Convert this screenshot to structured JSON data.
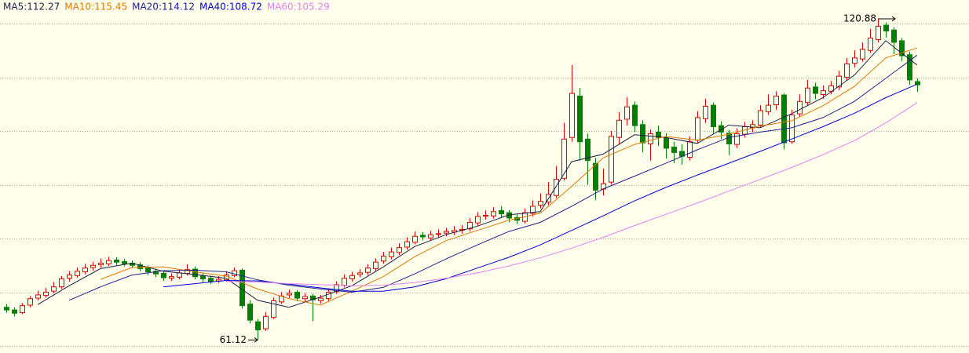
{
  "chart_data": {
    "type": "candlestick",
    "up_color": "#e00000",
    "down_color": "#008000",
    "background": "#ffffec",
    "grid": true,
    "ylim": [
      58.69,
      124.38
    ],
    "yticks": [
      60,
      70,
      80,
      90,
      100,
      110,
      120
    ],
    "open": [
      67.2,
      66.7,
      66.2,
      67.6,
      68.9,
      69.4,
      70.2,
      71.0,
      72.6,
      73.1,
      73.8,
      74.6,
      75.1,
      75.3,
      76.0,
      75.7,
      75.4,
      75.1,
      74.5,
      73.9,
      73.5,
      72.6,
      72.8,
      73.5,
      74.3,
      73.0,
      72.6,
      72.1,
      72.3,
      73.1,
      74.1,
      67.8,
      64.5,
      63.2,
      65.3,
      68.2,
      69.5,
      70.0,
      68.8,
      69.3,
      68.4,
      68.8,
      70.1,
      71.3,
      72.5,
      73.3,
      73.7,
      74.4,
      75.8,
      76.6,
      77.4,
      78.4,
      79.3,
      80.6,
      80.1,
      80.8,
      81.0,
      81.2,
      81.6,
      81.8,
      82.9,
      84.2,
      84.2,
      85.2,
      84.8,
      83.9,
      83.2,
      84.7,
      86.2,
      86.8,
      88.0,
      91.2,
      98.8,
      106.5,
      98.5,
      94.0,
      89.2,
      90.5,
      98.8,
      102.2,
      104.8,
      101.2,
      97.6,
      99.8,
      98.7,
      97.0,
      96.2,
      95.1,
      98.3,
      102.3,
      104.8,
      101.0,
      99.6,
      97.5,
      99.4,
      100.6,
      101.1,
      103.6,
      104.9,
      106.7,
      98.0,
      103.2,
      105.3,
      108.2,
      106.8,
      107.4,
      108.2,
      110.0,
      112.6,
      113.4,
      115.0,
      117.0,
      119.7,
      118.8,
      116.8,
      114.2,
      109.2
    ],
    "high": [
      67.8,
      67.2,
      68.0,
      69.3,
      70.3,
      70.8,
      71.9,
      73.0,
      73.9,
      74.6,
      75.3,
      75.7,
      76.3,
      76.6,
      76.5,
      76.2,
      75.9,
      75.6,
      75.0,
      74.4,
      74.0,
      73.5,
      74.3,
      75.2,
      74.8,
      73.6,
      73.1,
      73.0,
      73.9,
      74.6,
      74.4,
      68.5,
      65.0,
      66.3,
      69.0,
      70.0,
      70.5,
      70.4,
      69.8,
      69.7,
      69.5,
      70.6,
      72.0,
      73.3,
      73.8,
      74.3,
      75.2,
      76.3,
      77.5,
      78.3,
      79.1,
      80.2,
      81.3,
      81.2,
      81.4,
      81.7,
      82.0,
      82.3,
      82.5,
      83.8,
      84.9,
      85.2,
      85.8,
      86.0,
      85.3,
      84.5,
      85.6,
      87.1,
      88.4,
      90.5,
      93.5,
      101.5,
      112.3,
      108.0,
      99.5,
      95.0,
      93.0,
      100.0,
      103.5,
      106.3,
      105.5,
      102.0,
      100.3,
      101.0,
      99.6,
      98.0,
      97.5,
      99.0,
      103.7,
      106.0,
      105.3,
      101.8,
      100.2,
      100.5,
      101.7,
      102.0,
      104.8,
      106.8,
      107.4,
      107.0,
      104.0,
      106.8,
      109.5,
      109.0,
      108.5,
      109.3,
      111.2,
      113.6,
      115.0,
      116.4,
      119.0,
      120.88,
      120.2,
      119.3,
      117.3,
      114.8,
      109.8
    ],
    "low": [
      66.2,
      65.5,
      65.9,
      67.2,
      68.5,
      69.0,
      69.8,
      70.6,
      72.0,
      72.7,
      73.3,
      74.0,
      74.6,
      74.9,
      75.0,
      74.8,
      74.5,
      73.9,
      73.2,
      72.8,
      72.1,
      72.1,
      72.4,
      73.1,
      72.4,
      71.9,
      71.5,
      71.7,
      71.9,
      72.8,
      67.0,
      64.2,
      61.12,
      62.8,
      65.0,
      67.8,
      68.9,
      68.3,
      68.2,
      64.6,
      67.9,
      68.4,
      69.7,
      70.9,
      72.0,
      72.8,
      73.2,
      74.0,
      75.3,
      76.1,
      76.9,
      77.9,
      78.9,
      79.7,
      79.6,
      80.2,
      80.4,
      80.6,
      80.9,
      81.3,
      82.4,
      83.5,
      83.7,
      83.9,
      83.0,
      82.7,
      82.8,
      84.1,
      85.6,
      86.2,
      87.5,
      90.8,
      98.0,
      94.5,
      90.0,
      87.2,
      88.0,
      90.0,
      97.5,
      101.0,
      99.8,
      96.0,
      94.5,
      97.2,
      94.9,
      94.0,
      93.7,
      94.5,
      97.8,
      101.5,
      99.5,
      98.5,
      95.5,
      96.8,
      98.8,
      99.8,
      100.6,
      103.0,
      103.9,
      96.6,
      97.6,
      102.7,
      104.8,
      105.9,
      106.0,
      106.8,
      107.6,
      109.5,
      111.8,
      112.9,
      114.5,
      116.5,
      117.4,
      114.3,
      113.0,
      108.6,
      107.3
    ],
    "close": [
      66.7,
      66.1,
      67.5,
      68.8,
      69.5,
      70.0,
      71.0,
      72.5,
      73.2,
      73.9,
      74.5,
      75.0,
      75.4,
      75.9,
      75.6,
      75.3,
      75.0,
      74.4,
      73.8,
      73.4,
      72.7,
      72.9,
      73.6,
      74.2,
      72.9,
      72.5,
      72.0,
      72.4,
      73.2,
      74.0,
      67.5,
      64.8,
      63.0,
      65.5,
      68.4,
      69.3,
      69.8,
      68.9,
      69.2,
      68.6,
      68.9,
      70.0,
      71.4,
      72.6,
      73.1,
      73.6,
      74.5,
      75.6,
      76.7,
      77.5,
      78.3,
      79.4,
      80.4,
      80.3,
      80.7,
      80.9,
      81.3,
      81.5,
      81.7,
      83.0,
      84.1,
      84.3,
      85.0,
      84.6,
      83.8,
      83.4,
      84.8,
      86.0,
      86.9,
      88.2,
      91.0,
      98.5,
      107.0,
      98.0,
      94.5,
      89.0,
      90.2,
      99.0,
      102.0,
      104.5,
      101.0,
      97.8,
      99.5,
      98.8,
      96.8,
      96.0,
      95.3,
      98.0,
      102.5,
      104.6,
      100.8,
      99.8,
      97.6,
      99.5,
      100.8,
      101.2,
      103.8,
      104.8,
      106.5,
      97.8,
      103.0,
      105.5,
      108.0,
      107.0,
      107.5,
      108.4,
      110.2,
      112.5,
      113.6,
      115.2,
      117.3,
      119.5,
      118.6,
      116.5,
      114.0,
      109.5,
      108.6
    ],
    "max_label": "120.88",
    "min_label": "61.12",
    "series": [
      {
        "name": "MA5:112.27",
        "color": "#1c1c48",
        "x": [
          4,
          8,
          12,
          16,
          20,
          24,
          28,
          32,
          36,
          40,
          44,
          48,
          52,
          56,
          60,
          64,
          68,
          72,
          76,
          80,
          84,
          88,
          92,
          96,
          100,
          104,
          108,
          112,
          116
        ],
        "values": [
          67.7,
          71.2,
          74.4,
          75.4,
          73.9,
          73.3,
          72.6,
          68.5,
          67.2,
          69.1,
          71.2,
          74.7,
          78.5,
          80.7,
          82.3,
          84.4,
          85.0,
          94.3,
          95.7,
          99.3,
          98.8,
          97.7,
          101.1,
          100.6,
          103.2,
          106.2,
          110.4,
          116.8,
          112.27
        ]
      },
      {
        "name": "MA10:115.45",
        "color": "#e07800",
        "x": [
          12,
          16,
          20,
          24,
          28,
          32,
          36,
          40,
          44,
          48,
          52,
          56,
          60,
          64,
          68,
          72,
          76,
          80,
          84,
          88,
          92,
          96,
          100,
          104,
          108,
          112,
          116
        ],
        "values": [
          72.4,
          74.6,
          74.7,
          73.8,
          73.0,
          70.6,
          68.8,
          67.6,
          70.2,
          72.9,
          76.6,
          79.6,
          81.5,
          83.4,
          84.7,
          89.7,
          95.0,
          97.5,
          99.0,
          98.3,
          99.4,
          100.9,
          101.9,
          104.7,
          108.3,
          113.6,
          115.45
        ]
      },
      {
        "name": "MA20:114.12",
        "color": "#202090",
        "x": [
          8,
          12,
          16,
          20,
          24,
          28,
          32,
          36,
          40,
          44,
          48,
          52,
          56,
          60,
          64,
          68,
          72,
          76,
          80,
          84,
          88,
          92,
          96,
          100,
          104,
          108,
          112,
          116
        ],
        "values": [
          68.5,
          71.0,
          73.2,
          74.0,
          74.1,
          73.8,
          72.3,
          71.3,
          70.6,
          70.0,
          70.9,
          73.4,
          76.2,
          78.8,
          81.3,
          83.0,
          86.0,
          89.2,
          91.6,
          94.0,
          96.5,
          98.8,
          99.8,
          100.6,
          102.5,
          105.5,
          109.8,
          114.12
        ]
      },
      {
        "name": "MA40:108.72",
        "color": "#0000d8",
        "x": [
          20,
          24,
          28,
          32,
          36,
          40,
          44,
          48,
          52,
          56,
          60,
          64,
          68,
          72,
          76,
          80,
          84,
          88,
          92,
          96,
          100,
          104,
          108,
          112,
          116
        ],
        "values": [
          71.0,
          71.6,
          72.2,
          72.1,
          71.5,
          70.8,
          70.2,
          70.2,
          71.0,
          72.5,
          74.5,
          76.5,
          78.8,
          81.5,
          84.2,
          87.0,
          89.5,
          91.8,
          94.0,
          96.2,
          98.5,
          100.8,
          103.3,
          106.2,
          108.72
        ]
      },
      {
        "name": "MA60:105.29",
        "color": "#e080f0",
        "x": [
          28,
          32,
          36,
          40,
          44,
          48,
          52,
          56,
          60,
          64,
          68,
          72,
          76,
          80,
          84,
          88,
          92,
          96,
          100,
          104,
          108,
          112,
          116
        ],
        "values": [
          72.0,
          71.9,
          71.6,
          71.4,
          71.2,
          71.3,
          71.8,
          72.6,
          73.6,
          74.9,
          76.4,
          78.2,
          80.2,
          82.4,
          84.5,
          86.6,
          88.8,
          91.0,
          93.2,
          95.6,
          98.2,
          101.5,
          105.29
        ]
      }
    ]
  }
}
